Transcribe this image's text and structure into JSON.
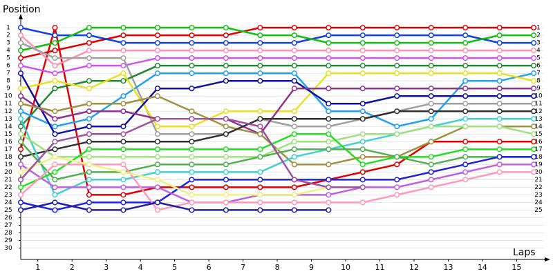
{
  "chart_data": {
    "type": "line",
    "y_label": "Position",
    "x_label": "Laps",
    "x": [
      0,
      1,
      2,
      3,
      4,
      5,
      6,
      7,
      8,
      9,
      10,
      11,
      12,
      13,
      14,
      15
    ],
    "xlim": [
      0,
      15.3
    ],
    "xticks": [
      {
        "value": 0.5,
        "label": "1"
      },
      {
        "value": 1.5,
        "label": "2"
      },
      {
        "value": 2.5,
        "label": "3"
      },
      {
        "value": 3.5,
        "label": "4"
      },
      {
        "value": 4.5,
        "label": "5"
      },
      {
        "value": 5.5,
        "label": "6"
      },
      {
        "value": 6.5,
        "label": "7"
      },
      {
        "value": 7.5,
        "label": "8"
      },
      {
        "value": 8.5,
        "label": "9"
      },
      {
        "value": 9.5,
        "label": "10"
      },
      {
        "value": 10.5,
        "label": "11"
      },
      {
        "value": 11.5,
        "label": "12"
      },
      {
        "value": 12.5,
        "label": "13"
      },
      {
        "value": 13.5,
        "label": "14"
      },
      {
        "value": 14.5,
        "label": "15"
      }
    ],
    "ylim": [
      31.5,
      -0.1
    ],
    "yticks": [
      1,
      2,
      3,
      4,
      5,
      6,
      7,
      8,
      9,
      10,
      11,
      12,
      13,
      14,
      15,
      16,
      17,
      18,
      19,
      20,
      21,
      22,
      23,
      24,
      25,
      26,
      27,
      28,
      29,
      30
    ],
    "y2lim": [
      31.5,
      -0.1
    ],
    "y2ticks": [
      1,
      2,
      3,
      4,
      5,
      6,
      7,
      8,
      9,
      10,
      11,
      12,
      13,
      14,
      15,
      16,
      17,
      18,
      19,
      20,
      21,
      22,
      23,
      24,
      25
    ],
    "grid": true,
    "series": [
      {
        "color": "#e00000",
        "values": [
          17,
          1,
          23,
          23,
          22,
          22,
          22,
          22,
          22,
          21,
          20,
          19,
          16,
          16,
          16,
          16
        ]
      },
      {
        "color": "#e00000",
        "values": [
          5,
          4,
          3,
          2,
          2,
          2,
          2,
          1,
          1,
          1,
          1,
          1,
          1,
          1,
          1,
          1
        ]
      },
      {
        "color": "#1040e0",
        "values": [
          1,
          2,
          2,
          3,
          3,
          3,
          3,
          3,
          3,
          2,
          2,
          2,
          2,
          2,
          3,
          3
        ]
      },
      {
        "color": "#10c010",
        "values": [
          4,
          3,
          1,
          1,
          1,
          1,
          1,
          2,
          2,
          3,
          3,
          3,
          3,
          3,
          2,
          2
        ]
      },
      {
        "color": "#ff90b0",
        "values": [
          2,
          6,
          4,
          4,
          4,
          4,
          4,
          4,
          4,
          4,
          4,
          4,
          4,
          4,
          4,
          4
        ]
      },
      {
        "color": "#d050f0",
        "values": [
          6,
          7,
          6,
          6,
          5,
          5,
          5,
          5,
          5,
          5,
          5,
          5,
          5,
          5,
          5,
          5
        ]
      },
      {
        "color": "#a0a0a0",
        "values": [
          3,
          5,
          5,
          5,
          15,
          15,
          15,
          13,
          14,
          14,
          13,
          12,
          11,
          11,
          11,
          11
        ]
      },
      {
        "color": "#208830",
        "values": [
          14,
          9,
          8,
          8,
          6,
          6,
          6,
          6,
          6,
          6,
          6,
          6,
          6,
          6,
          6,
          6
        ]
      },
      {
        "color": "#20a0f0",
        "values": [
          12,
          14,
          13,
          10,
          7,
          7,
          7,
          7,
          7,
          12,
          12,
          14,
          13,
          8,
          8,
          7
        ]
      },
      {
        "color": "#e8e020",
        "values": [
          9,
          8,
          9,
          7,
          14,
          14,
          12,
          12,
          12,
          7,
          7,
          7,
          7,
          7,
          7,
          8
        ]
      },
      {
        "color": "#1010a0",
        "values": [
          7,
          15,
          14,
          14,
          9,
          9,
          8,
          8,
          8,
          11,
          11,
          10,
          10,
          10,
          10,
          10
        ]
      },
      {
        "color": "#903090",
        "values": [
          10,
          13,
          12,
          12,
          13,
          13,
          13,
          15,
          9,
          9,
          9,
          9,
          9,
          9,
          9,
          9
        ]
      },
      {
        "color": "#a09040",
        "values": [
          11,
          12,
          11,
          11,
          10,
          12,
          14,
          15,
          19,
          19,
          18,
          18,
          16,
          14,
          14,
          14
        ]
      },
      {
        "color": "#303030",
        "values": [
          18,
          17,
          16,
          16,
          16,
          16,
          15,
          13,
          13,
          13,
          13,
          12,
          12,
          12,
          12,
          12
        ]
      },
      {
        "color": "#40d0d0",
        "values": [
          13,
          23,
          21,
          21,
          20,
          20,
          20,
          20,
          18,
          17,
          16,
          15,
          14,
          13,
          13,
          13
        ]
      },
      {
        "color": "#a0e080",
        "values": [
          15,
          18,
          18,
          18,
          18,
          18,
          18,
          18,
          16,
          16,
          15,
          15,
          14,
          14,
          14,
          15
        ]
      },
      {
        "color": "#20e020",
        "values": [
          22,
          20,
          17,
          17,
          17,
          17,
          17,
          17,
          15,
          15,
          19,
          18,
          18,
          17,
          17,
          17
        ]
      },
      {
        "color": "#50b050",
        "values": [
          16,
          21,
          20,
          20,
          19,
          19,
          19,
          18,
          17,
          17,
          17,
          18,
          19,
          18,
          18,
          18
        ]
      },
      {
        "color": "#2020e0",
        "values": [
          24,
          25,
          24,
          24,
          24,
          21,
          21,
          21,
          21,
          21,
          21,
          21,
          20,
          19,
          18,
          18
        ]
      },
      {
        "color": "#c060e0",
        "values": [
          19,
          22,
          22,
          22,
          22,
          24,
          24,
          23,
          23,
          23,
          22,
          22,
          21,
          20,
          19,
          19
        ]
      },
      {
        "color": "#ff99bb",
        "values": [
          23,
          19,
          19,
          19,
          25,
          24,
          24,
          24,
          24,
          24,
          24,
          23,
          22,
          21,
          20,
          20
        ]
      },
      {
        "color": "#f0f080",
        "values": [
          20,
          18,
          19,
          20,
          21,
          23,
          23,
          23,
          23,
          22,
          22,
          null,
          null,
          null,
          null,
          null
        ]
      },
      {
        "color": "#2020a0",
        "values": [
          25,
          24,
          25,
          25,
          24,
          25,
          25,
          25,
          25,
          25,
          null,
          null,
          null,
          null,
          null,
          null
        ]
      },
      {
        "color": "#a050a0",
        "values": [
          21,
          16,
          15,
          15,
          13,
          13,
          13,
          14,
          21,
          22,
          22,
          null,
          null,
          null,
          null,
          null
        ]
      }
    ]
  }
}
